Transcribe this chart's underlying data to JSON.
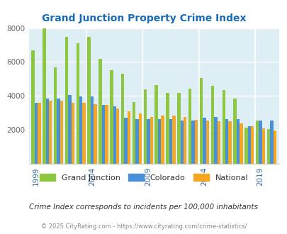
{
  "title": "Grand Junction Property Crime Index",
  "years": [
    1999,
    2000,
    2001,
    2002,
    2003,
    2004,
    2005,
    2006,
    2007,
    2008,
    2009,
    2010,
    2011,
    2012,
    2013,
    2014,
    2015,
    2016,
    2017,
    2018,
    2019,
    2020
  ],
  "grand_junction": [
    6700,
    8000,
    5700,
    7500,
    7100,
    7500,
    6200,
    5500,
    5300,
    3650,
    4400,
    4650,
    4200,
    4200,
    4450,
    5050,
    4600,
    4350,
    3850,
    2150,
    2550,
    2050
  ],
  "colorado": [
    3600,
    3850,
    3850,
    4050,
    3950,
    3950,
    3450,
    3400,
    2700,
    2650,
    2650,
    2650,
    2650,
    2550,
    2550,
    2700,
    2750,
    2650,
    2650,
    2200,
    2550,
    2550
  ],
  "national": [
    3600,
    3700,
    3700,
    3600,
    3600,
    3500,
    3450,
    3250,
    3100,
    2950,
    2750,
    2850,
    2850,
    2750,
    2600,
    2550,
    2500,
    2500,
    2400,
    2200,
    2100,
    1950
  ],
  "bar_width": 0.28,
  "colors": {
    "grand_junction": "#8dc63f",
    "colorado": "#4a90d9",
    "national": "#f5a623"
  },
  "ylim": [
    0,
    8000
  ],
  "yticks": [
    0,
    2000,
    4000,
    6000,
    8000
  ],
  "xtick_years": [
    1999,
    2004,
    2009,
    2014,
    2019
  ],
  "background_color": "#ddeef5",
  "title_color": "#1a6bb5",
  "subtitle": "Crime Index corresponds to incidents per 100,000 inhabitants",
  "footer": "© 2025 CityRating.com - https://www.cityrating.com/crime-statistics/",
  "legend_labels": [
    "Grand Junction",
    "Colorado",
    "National"
  ],
  "separator_years": [
    2004,
    2009,
    2014,
    2019
  ]
}
